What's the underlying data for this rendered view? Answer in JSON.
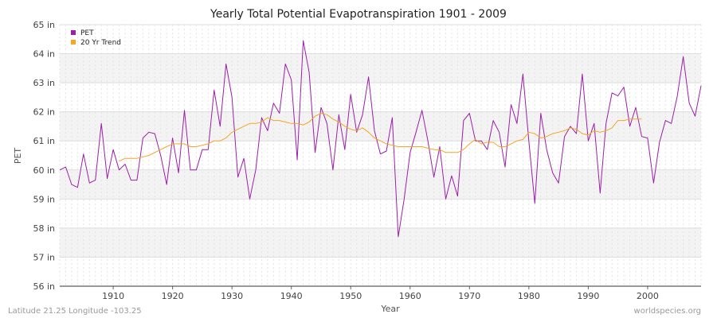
{
  "chart_data": {
    "type": "line",
    "title": "Yearly Total Potential Evapotranspiration 1901 - 2009",
    "xlabel": "Year",
    "ylabel": "PET",
    "xlim": [
      1901,
      2009
    ],
    "ylim": [
      56,
      65
    ],
    "x_ticks": [
      "1910",
      "1920",
      "1930",
      "1940",
      "1950",
      "1960",
      "1970",
      "1980",
      "1990",
      "2000"
    ],
    "y_ticks": [
      "56 in",
      "57 in",
      "58 in",
      "59 in",
      "60 in",
      "61 in",
      "62 in",
      "63 in",
      "64 in",
      "65 in"
    ],
    "legend_position": "top-left",
    "grid": true,
    "series": [
      {
        "name": "PET",
        "color": "#9b1fa8",
        "x": [
          1901,
          1902,
          1903,
          1904,
          1905,
          1906,
          1907,
          1908,
          1909,
          1910,
          1911,
          1912,
          1913,
          1914,
          1915,
          1916,
          1917,
          1918,
          1919,
          1920,
          1921,
          1922,
          1923,
          1924,
          1925,
          1926,
          1927,
          1928,
          1929,
          1930,
          1931,
          1932,
          1933,
          1934,
          1935,
          1936,
          1937,
          1938,
          1939,
          1940,
          1941,
          1942,
          1943,
          1944,
          1945,
          1946,
          1947,
          1948,
          1949,
          1950,
          1951,
          1952,
          1953,
          1954,
          1955,
          1956,
          1957,
          1958,
          1959,
          1960,
          1961,
          1962,
          1963,
          1964,
          1965,
          1966,
          1967,
          1968,
          1969,
          1970,
          1971,
          1972,
          1973,
          1974,
          1975,
          1976,
          1977,
          1978,
          1979,
          1980,
          1981,
          1982,
          1983,
          1984,
          1985,
          1986,
          1987,
          1988,
          1989,
          1990,
          1991,
          1992,
          1993,
          1994,
          1995,
          1996,
          1997,
          1998,
          1999,
          2000,
          2001,
          2002,
          2003,
          2004,
          2005,
          2006,
          2007,
          2008,
          2009
        ],
        "values": [
          60.0,
          60.1,
          59.5,
          59.4,
          60.55,
          59.55,
          59.65,
          61.6,
          59.7,
          60.7,
          60.0,
          60.2,
          59.65,
          59.65,
          61.1,
          61.3,
          61.25,
          60.5,
          59.5,
          61.1,
          59.9,
          62.05,
          60.0,
          60.0,
          60.7,
          60.7,
          62.75,
          61.5,
          63.65,
          62.5,
          59.75,
          60.4,
          59.0,
          60.0,
          61.8,
          61.35,
          62.3,
          61.95,
          63.65,
          63.1,
          60.35,
          64.45,
          63.35,
          60.6,
          62.15,
          61.6,
          60.0,
          61.9,
          60.7,
          62.6,
          61.3,
          61.9,
          63.2,
          61.35,
          60.55,
          60.65,
          61.8,
          57.7,
          59.0,
          60.6,
          61.3,
          62.05,
          61.0,
          59.75,
          60.8,
          59.0,
          59.8,
          59.1,
          61.7,
          61.95,
          61.0,
          61.0,
          60.7,
          61.7,
          61.3,
          60.1,
          62.25,
          61.6,
          63.3,
          61.0,
          58.85,
          61.95,
          60.7,
          59.9,
          59.55,
          61.15,
          61.5,
          61.25,
          63.3,
          61.0,
          61.6,
          59.2,
          61.6,
          62.65,
          62.55,
          62.85,
          61.5,
          62.15,
          61.15,
          61.1,
          59.55,
          60.95,
          61.7,
          61.6,
          62.55,
          63.9,
          62.3,
          61.85,
          62.9
        ]
      },
      {
        "name": "20 Yr Trend",
        "color": "#f5a623",
        "x": [
          1911,
          1912,
          1913,
          1914,
          1915,
          1916,
          1917,
          1918,
          1919,
          1920,
          1921,
          1922,
          1923,
          1924,
          1925,
          1926,
          1927,
          1928,
          1929,
          1930,
          1931,
          1932,
          1933,
          1934,
          1935,
          1936,
          1937,
          1938,
          1939,
          1940,
          1941,
          1942,
          1943,
          1944,
          1945,
          1946,
          1947,
          1948,
          1949,
          1950,
          1951,
          1952,
          1953,
          1954,
          1955,
          1956,
          1957,
          1958,
          1959,
          1960,
          1961,
          1962,
          1963,
          1964,
          1965,
          1966,
          1967,
          1968,
          1969,
          1970,
          1971,
          1972,
          1973,
          1974,
          1975,
          1976,
          1977,
          1978,
          1979,
          1980,
          1981,
          1982,
          1983,
          1984,
          1985,
          1986,
          1987,
          1988,
          1989,
          1990,
          1991,
          1992,
          1993,
          1994,
          1995,
          1996,
          1997,
          1998,
          1999
        ],
        "values": [
          60.3,
          60.4,
          60.4,
          60.4,
          60.45,
          60.5,
          60.6,
          60.7,
          60.8,
          60.9,
          60.9,
          60.9,
          60.8,
          60.8,
          60.85,
          60.9,
          61.0,
          61.0,
          61.1,
          61.3,
          61.4,
          61.5,
          61.6,
          61.6,
          61.65,
          61.8,
          61.7,
          61.7,
          61.65,
          61.6,
          61.6,
          61.55,
          61.65,
          61.85,
          61.95,
          61.9,
          61.75,
          61.65,
          61.5,
          61.4,
          61.35,
          61.45,
          61.3,
          61.1,
          61.0,
          60.9,
          60.85,
          60.8,
          60.8,
          60.8,
          60.8,
          60.8,
          60.75,
          60.7,
          60.7,
          60.6,
          60.6,
          60.6,
          60.7,
          60.9,
          61.05,
          60.9,
          60.95,
          60.95,
          60.8,
          60.8,
          60.9,
          61.0,
          61.05,
          61.3,
          61.25,
          61.1,
          61.15,
          61.25,
          61.3,
          61.35,
          61.45,
          61.4,
          61.25,
          61.2,
          61.35,
          61.3,
          61.35,
          61.45,
          61.7,
          61.7,
          61.75,
          61.75,
          61.75
        ]
      }
    ]
  },
  "footer": {
    "left": "Latitude 21.25 Longitude -103.25",
    "right": "worldspecies.org"
  }
}
